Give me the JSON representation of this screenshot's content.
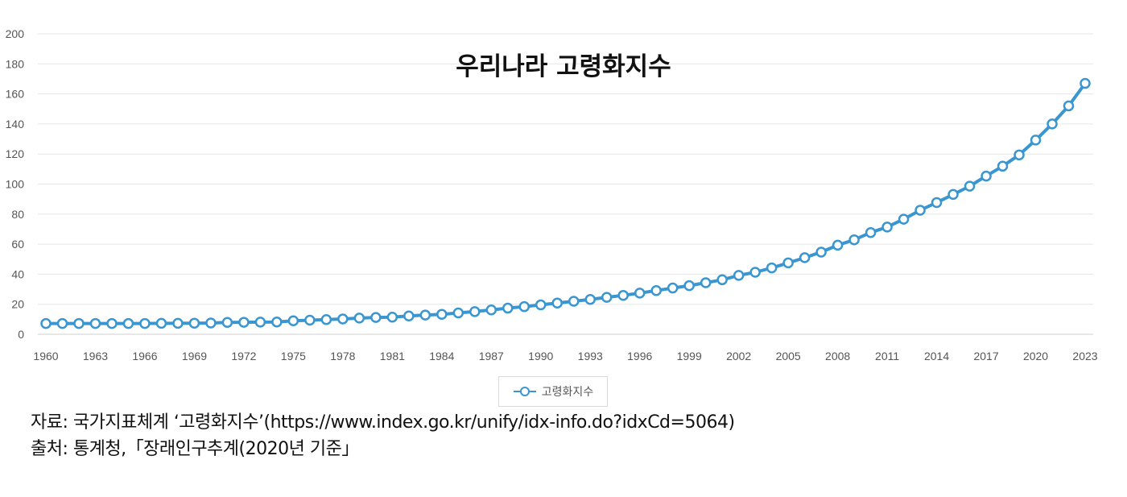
{
  "chart_data": {
    "type": "line",
    "title": "우리나라 고령화지수",
    "xlabel": "",
    "ylabel": "",
    "ylim": [
      0,
      200
    ],
    "yticks": [
      "0",
      "20",
      "40",
      "60",
      "80",
      "100",
      "120",
      "140",
      "160",
      "180",
      "200"
    ],
    "xticks": [
      "1960",
      "1963",
      "1966",
      "1969",
      "1972",
      "1975",
      "1978",
      "1981",
      "1984",
      "1987",
      "1990",
      "1993",
      "1996",
      "1999",
      "2002",
      "2005",
      "2008",
      "2011",
      "2014",
      "2017",
      "2020",
      "2023"
    ],
    "grid": true,
    "legend_position": "bottom",
    "series": [
      {
        "name": "고령화지수",
        "color": "#3a96d0",
        "x": [
          1960,
          1961,
          1962,
          1963,
          1964,
          1965,
          1966,
          1967,
          1968,
          1969,
          1970,
          1971,
          1972,
          1973,
          1974,
          1975,
          1976,
          1977,
          1978,
          1979,
          1980,
          1981,
          1982,
          1983,
          1984,
          1985,
          1986,
          1987,
          1988,
          1989,
          1990,
          1991,
          1992,
          1993,
          1994,
          1995,
          1996,
          1997,
          1998,
          1999,
          2000,
          2001,
          2002,
          2003,
          2004,
          2005,
          2006,
          2007,
          2008,
          2009,
          2010,
          2011,
          2012,
          2013,
          2014,
          2015,
          2016,
          2017,
          2018,
          2019,
          2020,
          2021,
          2022,
          2023
        ],
        "values": [
          7.2,
          7.2,
          7.2,
          7.2,
          7.2,
          7.2,
          7.2,
          7.3,
          7.3,
          7.4,
          7.5,
          7.9,
          8.0,
          8.1,
          8.2,
          9.0,
          9.4,
          9.8,
          10.2,
          10.8,
          11.2,
          11.4,
          12.2,
          12.8,
          13.3,
          14.2,
          15.1,
          16.2,
          17.4,
          18.4,
          19.6,
          20.8,
          22.0,
          23.2,
          24.6,
          25.9,
          27.4,
          29.1,
          30.8,
          32.4,
          34.3,
          36.3,
          39.2,
          41.3,
          44.2,
          47.5,
          51.0,
          54.7,
          59.3,
          62.9,
          67.7,
          71.4,
          76.6,
          82.6,
          87.7,
          93.1,
          98.6,
          105.3,
          111.9,
          119.4,
          129.3,
          140.0,
          152.0,
          167.0
        ]
      }
    ]
  },
  "legend": {
    "label": "고령화지수",
    "marker": "circle-line-marker-icon"
  },
  "notes": {
    "source": "자료: 국가지표체계 ‘고령화지수’(https://www.index.go.kr/unify/idx-info.do?idxCd=5064)",
    "origin": "출처: 통계청,「장래인구추계(2020년 기준」"
  }
}
